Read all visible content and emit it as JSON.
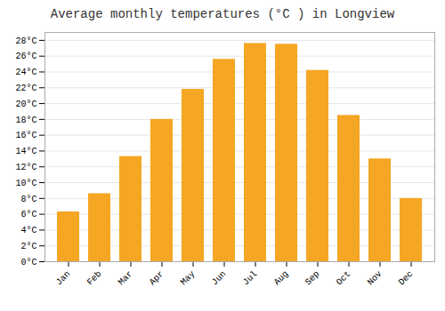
{
  "chart_data": {
    "type": "bar",
    "title": "Average monthly temperatures (°C ) in Longview",
    "categories": [
      "Jan",
      "Feb",
      "Mar",
      "Apr",
      "May",
      "Jun",
      "Jul",
      "Aug",
      "Sep",
      "Oct",
      "Nov",
      "Dec"
    ],
    "values": [
      6.3,
      8.6,
      13.3,
      18.0,
      21.8,
      25.6,
      27.6,
      27.5,
      24.2,
      18.5,
      13.0,
      8.0
    ],
    "color": "#F5A623",
    "ylim": [
      0,
      29
    ],
    "yticks": [
      {
        "value": 0,
        "label": "0°C"
      },
      {
        "value": 2,
        "label": "2°C"
      },
      {
        "value": 4,
        "label": "4°C"
      },
      {
        "value": 6,
        "label": "6°C"
      },
      {
        "value": 8,
        "label": "8°C"
      },
      {
        "value": 10,
        "label": "10°C"
      },
      {
        "value": 12,
        "label": "12°C"
      },
      {
        "value": 14,
        "label": "14°C"
      },
      {
        "value": 16,
        "label": "16°C"
      },
      {
        "value": 18,
        "label": "18°C"
      },
      {
        "value": 20,
        "label": "20°C"
      },
      {
        "value": 22,
        "label": "22°C"
      },
      {
        "value": 24,
        "label": "24°C"
      },
      {
        "value": 26,
        "label": "26°C"
      },
      {
        "value": 28,
        "label": "28°C"
      }
    ],
    "grid": true
  }
}
